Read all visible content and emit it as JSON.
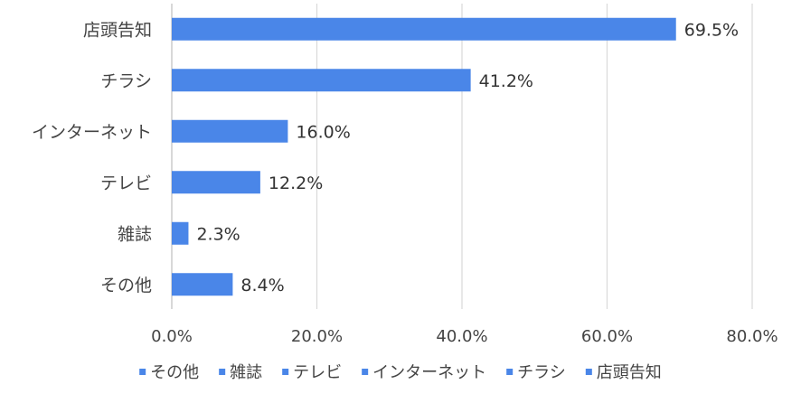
{
  "chart_data": {
    "type": "bar",
    "orientation": "horizontal",
    "title": "",
    "xlabel": "",
    "ylabel": "",
    "categories": [
      "店頭告知",
      "チラシ",
      "インターネット",
      "テレビ",
      "雑誌",
      "その他"
    ],
    "values": [
      69.5,
      41.2,
      16.0,
      12.2,
      2.3,
      8.4
    ],
    "value_labels": [
      "69.5%",
      "41.2%",
      "16.0%",
      "12.2%",
      "2.3%",
      "8.4%"
    ],
    "xlim": [
      0,
      80
    ],
    "x_ticks": [
      0,
      20,
      40,
      60,
      80
    ],
    "x_tick_labels": [
      "0.0%",
      "20.0%",
      "40.0%",
      "60.0%",
      "80.0%"
    ],
    "grid": "vertical",
    "legend_position": "bottom",
    "legend": [
      "その他",
      "雑誌",
      "テレビ",
      "インターネット",
      "チラシ",
      "店頭告知"
    ],
    "bar_color": "#4a86e8",
    "grid_color": "#d9d9d9"
  }
}
